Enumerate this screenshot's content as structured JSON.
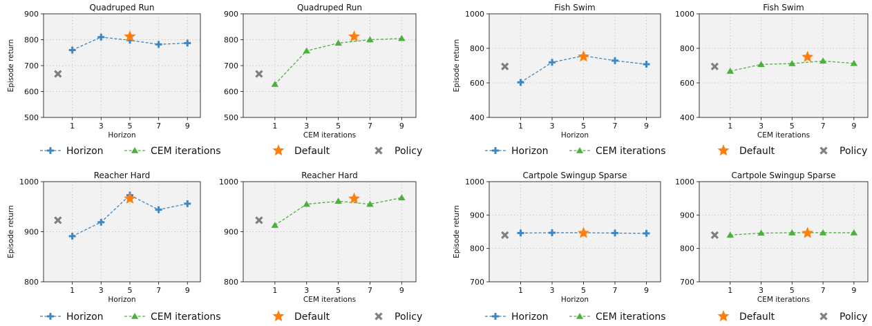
{
  "legend": {
    "horizon": "Horizon",
    "cem": "CEM iterations",
    "default": "Default",
    "policy": "Policy"
  },
  "colors": {
    "horizon": "#3f85bf",
    "cem": "#4caf3e",
    "default": "#ff7f0e",
    "policy": "#7f7f7f",
    "panel_bg": "#f2f2f2",
    "grid": "#c8c8c8"
  },
  "chart_data": [
    {
      "id": "qr-h",
      "type": "line",
      "title": "Quadruped Run",
      "xlabel": "Horizon",
      "ylabel": "Episode return",
      "series_key": "horizon",
      "ylim": [
        500,
        900
      ],
      "yticks": [
        500,
        600,
        700,
        800,
        900
      ],
      "xticks": [
        1,
        3,
        5,
        7,
        9
      ],
      "x": [
        1,
        3,
        5,
        7,
        9
      ],
      "y": [
        760,
        810,
        798,
        782,
        787
      ],
      "default": {
        "x": 5,
        "y": 812
      },
      "policy": {
        "x": 0,
        "y": 668
      }
    },
    {
      "id": "qr-c",
      "type": "line",
      "title": "Quadruped Run",
      "xlabel": "CEM iterations",
      "ylabel": "",
      "series_key": "cem",
      "ylim": [
        500,
        900
      ],
      "yticks": [
        500,
        600,
        700,
        800,
        900
      ],
      "xticks": [
        1,
        3,
        5,
        7,
        9
      ],
      "x": [
        1,
        3,
        5,
        7,
        9
      ],
      "y": [
        628,
        757,
        787,
        800,
        805
      ],
      "default": {
        "x": 6,
        "y": 812
      },
      "policy": {
        "x": 0,
        "y": 668
      }
    },
    {
      "id": "fs-h",
      "type": "line",
      "title": "Fish Swim",
      "xlabel": "Horizon",
      "ylabel": "Episode return",
      "series_key": "horizon",
      "ylim": [
        400,
        1000
      ],
      "yticks": [
        400,
        600,
        800,
        1000
      ],
      "xticks": [
        1,
        3,
        5,
        7,
        9
      ],
      "x": [
        1,
        3,
        5,
        7,
        9
      ],
      "y": [
        603,
        719,
        757,
        729,
        708
      ],
      "default": {
        "x": 5,
        "y": 752
      },
      "policy": {
        "x": 0,
        "y": 695
      }
    },
    {
      "id": "fs-c",
      "type": "line",
      "title": "Fish Swim",
      "xlabel": "CEM iterations",
      "ylabel": "",
      "series_key": "cem",
      "ylim": [
        400,
        1000
      ],
      "yticks": [
        400,
        600,
        800,
        1000
      ],
      "xticks": [
        1,
        3,
        5,
        7,
        9
      ],
      "x": [
        1,
        3,
        5,
        7,
        9
      ],
      "y": [
        668,
        707,
        712,
        727,
        713
      ],
      "default": {
        "x": 6,
        "y": 750
      },
      "policy": {
        "x": 0,
        "y": 695
      }
    },
    {
      "id": "rh-h",
      "type": "line",
      "title": "Reacher Hard",
      "xlabel": "Horizon",
      "ylabel": "Episode return",
      "series_key": "horizon",
      "ylim": [
        800,
        1000
      ],
      "yticks": [
        800,
        900,
        1000
      ],
      "xticks": [
        1,
        3,
        5,
        7,
        9
      ],
      "x": [
        1,
        3,
        5,
        7,
        9
      ],
      "y": [
        891,
        919,
        973,
        944,
        956
      ],
      "default": {
        "x": 5,
        "y": 966
      },
      "policy": {
        "x": 0,
        "y": 923
      }
    },
    {
      "id": "rh-c",
      "type": "line",
      "title": "Reacher Hard",
      "xlabel": "CEM iterations",
      "ylabel": "",
      "series_key": "cem",
      "ylim": [
        800,
        1000
      ],
      "yticks": [
        800,
        900,
        1000
      ],
      "xticks": [
        1,
        3,
        5,
        7,
        9
      ],
      "x": [
        1,
        3,
        5,
        7,
        9
      ],
      "y": [
        913,
        955,
        961,
        955,
        968
      ],
      "default": {
        "x": 6,
        "y": 966
      },
      "policy": {
        "x": 0,
        "y": 923
      }
    },
    {
      "id": "cs-h",
      "type": "line",
      "title": "Cartpole Swingup Sparse",
      "xlabel": "Horizon",
      "ylabel": "Episode return",
      "series_key": "horizon",
      "ylim": [
        700,
        1000
      ],
      "yticks": [
        700,
        800,
        900,
        1000
      ],
      "xticks": [
        1,
        3,
        5,
        7,
        9
      ],
      "x": [
        1,
        3,
        5,
        7,
        9
      ],
      "y": [
        846,
        847,
        847,
        846,
        845
      ],
      "default": {
        "x": 5,
        "y": 846
      },
      "policy": {
        "x": 0,
        "y": 840
      }
    },
    {
      "id": "cs-c",
      "type": "line",
      "title": "Cartpole Swingup Sparse",
      "xlabel": "CEM iterations",
      "ylabel": "",
      "series_key": "cem",
      "ylim": [
        700,
        1000
      ],
      "yticks": [
        700,
        800,
        900,
        1000
      ],
      "xticks": [
        1,
        3,
        5,
        7,
        9
      ],
      "x": [
        1,
        3,
        5,
        7,
        9
      ],
      "y": [
        840,
        846,
        847,
        847,
        847
      ],
      "default": {
        "x": 6,
        "y": 846
      },
      "policy": {
        "x": 0,
        "y": 840
      }
    }
  ]
}
